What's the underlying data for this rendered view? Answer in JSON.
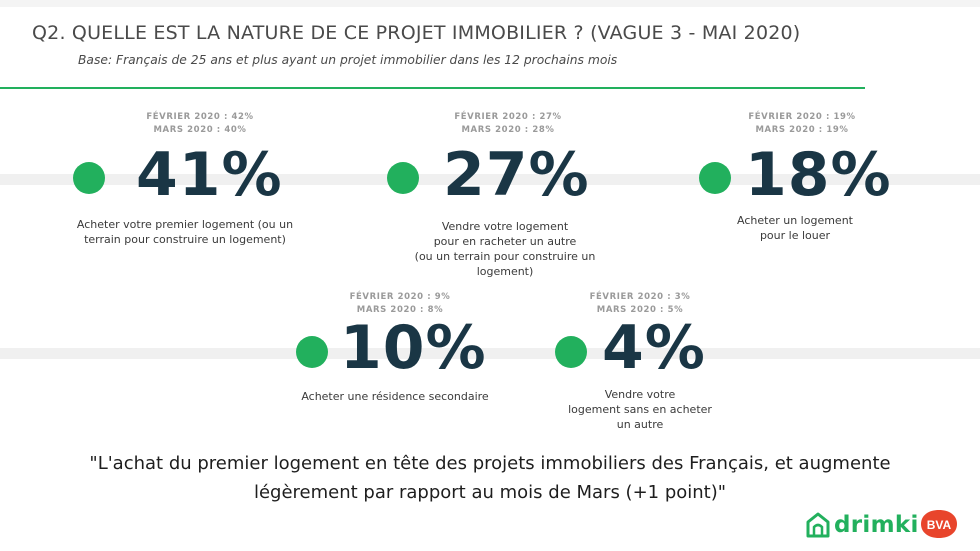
{
  "header": {
    "title": "Q2. QUELLE EST LA NATURE DE CE PROJET IMMOBILIER ? (VAGUE 3 - MAI 2020)",
    "subtitle": "Base: Français de 25 ans et plus ayant un projet immobilier dans les 12 prochains mois"
  },
  "chart_data": {
    "type": "table",
    "title": "Q2. QUELLE EST LA NATURE DE CE PROJET IMMOBILIER ? (VAGUE 3 - MAI 2020)",
    "items": [
      {
        "label_lines": [
          "Acheter votre premier logement (ou un",
          "terrain pour construire un logement)"
        ],
        "value": 41,
        "value_text": "41%",
        "fevrier": "FÉVRIER 2020 : 42%",
        "mars": "MARS 2020 : 40%"
      },
      {
        "label_lines": [
          "Vendre votre logement",
          "pour en racheter un autre",
          "(ou un terrain pour construire  un",
          "logement)"
        ],
        "value": 27,
        "value_text": "27%",
        "fevrier": "FÉVRIER 2020 : 27%",
        "mars": "MARS 2020 : 28%"
      },
      {
        "label_lines": [
          "Acheter un logement",
          "pour le louer"
        ],
        "value": 18,
        "value_text": "18%",
        "fevrier": "FÉVRIER 2020 : 19%",
        "mars": "MARS 2020 : 19%"
      },
      {
        "label_lines": [
          "Acheter une résidence secondaire"
        ],
        "value": 10,
        "value_text": "10%",
        "fevrier": "FÉVRIER 2020 : 9%",
        "mars": "MARS 2020 : 8%"
      },
      {
        "label_lines": [
          "Vendre votre",
          "logement sans en acheter",
          "un autre"
        ],
        "value": 4,
        "value_text": "4%",
        "fevrier": "FÉVRIER 2020 : 3%",
        "mars": "MARS 2020 : 5%"
      }
    ]
  },
  "quote": {
    "line1": "\"L'achat du premier logement en tête des projets immobiliers des Français, et augmente",
    "line2": "légèrement par rapport au mois de Mars  (+1 point)\""
  },
  "logos": {
    "drimki": "drimki",
    "bva": "BVA"
  },
  "colors": {
    "accent_green": "#22b05d",
    "value_dark": "#1a3645",
    "bva_red": "#e8452c"
  }
}
